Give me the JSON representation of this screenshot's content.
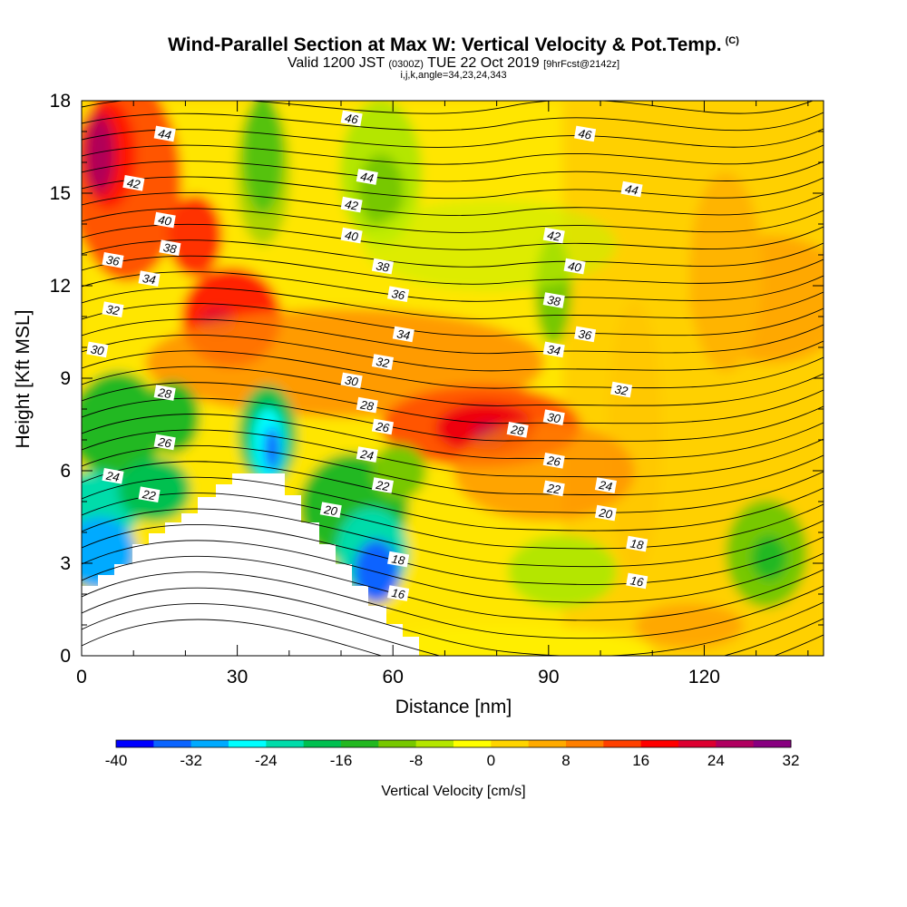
{
  "header": {
    "title": "Wind-Parallel Section at Max W: Vertical Velocity & Pot.Temp.",
    "title_mark": "(C)",
    "valid_a": "Valid 1200 JST",
    "valid_b": "(0300Z)",
    "valid_c": "TUE 22 Oct 2019",
    "valid_d": "[9hrFcst@2142z]",
    "subline": "i,j,k,angle=34,23,24,343"
  },
  "chart_data": {
    "type": "heatmap",
    "xlabel": "Distance [nm]",
    "ylabel": "Height [Kft MSL]",
    "xlim": [
      0,
      143
    ],
    "ylim": [
      0,
      18
    ],
    "xticks": [
      0,
      30,
      60,
      90,
      120
    ],
    "yticks": [
      0,
      3,
      6,
      9,
      12,
      15,
      18
    ],
    "colorbar": {
      "label": "Vertical Velocity [cm/s]",
      "ticks": [
        -40,
        -32,
        -24,
        -16,
        -8,
        0,
        8,
        16,
        24,
        32
      ],
      "colors": [
        "#0000ff",
        "#0a64ff",
        "#00aaff",
        "#00ffff",
        "#00dcaa",
        "#00c050",
        "#22b820",
        "#77c800",
        "#b4e600",
        "#ffff00",
        "#ffd400",
        "#ffaa00",
        "#ff7f00",
        "#ff4000",
        "#ff0000",
        "#dd0030",
        "#b00060",
        "#880080"
      ]
    },
    "contour_labels": [
      {
        "value": "46",
        "x": 52,
        "y": 17.4
      },
      {
        "value": "44",
        "x": 16,
        "y": 16.9
      },
      {
        "value": "46",
        "x": 97,
        "y": 16.9
      },
      {
        "value": "44",
        "x": 55,
        "y": 15.5
      },
      {
        "value": "42",
        "x": 10,
        "y": 15.3
      },
      {
        "value": "44",
        "x": 106,
        "y": 15.1
      },
      {
        "value": "42",
        "x": 52,
        "y": 14.6
      },
      {
        "value": "40",
        "x": 16,
        "y": 14.1
      },
      {
        "value": "42",
        "x": 91,
        "y": 13.6
      },
      {
        "value": "40",
        "x": 52,
        "y": 13.6
      },
      {
        "value": "38",
        "x": 17,
        "y": 13.2
      },
      {
        "value": "36",
        "x": 6,
        "y": 12.8
      },
      {
        "value": "40",
        "x": 95,
        "y": 12.6
      },
      {
        "value": "38",
        "x": 58,
        "y": 12.6
      },
      {
        "value": "34",
        "x": 13,
        "y": 12.2
      },
      {
        "value": "36",
        "x": 61,
        "y": 11.7
      },
      {
        "value": "38",
        "x": 91,
        "y": 11.5
      },
      {
        "value": "32",
        "x": 6,
        "y": 11.2
      },
      {
        "value": "36",
        "x": 97,
        "y": 10.4
      },
      {
        "value": "34",
        "x": 62,
        "y": 10.4
      },
      {
        "value": "34",
        "x": 91,
        "y": 9.9
      },
      {
        "value": "30",
        "x": 3,
        "y": 9.9
      },
      {
        "value": "32",
        "x": 58,
        "y": 9.5
      },
      {
        "value": "32",
        "x": 104,
        "y": 8.6
      },
      {
        "value": "30",
        "x": 52,
        "y": 8.9
      },
      {
        "value": "28",
        "x": 16,
        "y": 8.5
      },
      {
        "value": "28",
        "x": 55,
        "y": 8.1
      },
      {
        "value": "26",
        "x": 58,
        "y": 7.4
      },
      {
        "value": "30",
        "x": 91,
        "y": 7.7
      },
      {
        "value": "28",
        "x": 84,
        "y": 7.3
      },
      {
        "value": "26",
        "x": 16,
        "y": 6.9
      },
      {
        "value": "24",
        "x": 55,
        "y": 6.5
      },
      {
        "value": "26",
        "x": 91,
        "y": 6.3
      },
      {
        "value": "24",
        "x": 6,
        "y": 5.8
      },
      {
        "value": "22",
        "x": 58,
        "y": 5.5
      },
      {
        "value": "22",
        "x": 91,
        "y": 5.4
      },
      {
        "value": "24",
        "x": 101,
        "y": 5.5
      },
      {
        "value": "22",
        "x": 13,
        "y": 5.2
      },
      {
        "value": "20",
        "x": 48,
        "y": 4.7
      },
      {
        "value": "20",
        "x": 101,
        "y": 4.6
      },
      {
        "value": "18",
        "x": 107,
        "y": 3.6
      },
      {
        "value": "18",
        "x": 61,
        "y": 3.1
      },
      {
        "value": "16",
        "x": 107,
        "y": 2.4
      },
      {
        "value": "16",
        "x": 61,
        "y": 2.0
      }
    ]
  }
}
